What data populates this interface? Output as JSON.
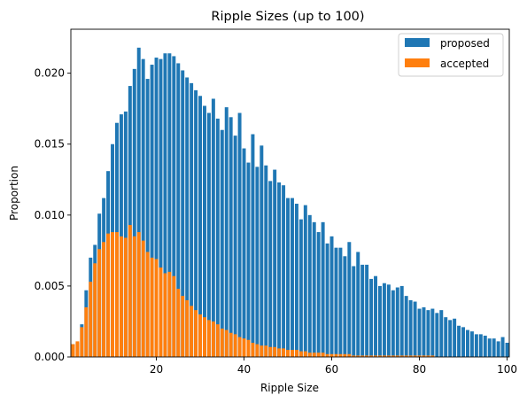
{
  "chart_data": {
    "type": "bar",
    "title": "Ripple Sizes (up to 100)",
    "xlabel": "Ripple Size",
    "ylabel": "Proportion",
    "xlim": [
      0.5,
      100.5
    ],
    "ylim": [
      0,
      0.0231
    ],
    "x_ticks": [
      20,
      40,
      60,
      80,
      100
    ],
    "y_ticks": [
      0.0,
      0.005,
      0.01,
      0.015,
      0.02
    ],
    "y_tick_labels": [
      "0.000",
      "0.005",
      "0.010",
      "0.015",
      "0.020"
    ],
    "grid": false,
    "legend_position": "top-right",
    "x": [
      1,
      2,
      3,
      4,
      5,
      6,
      7,
      8,
      9,
      10,
      11,
      12,
      13,
      14,
      15,
      16,
      17,
      18,
      19,
      20,
      21,
      22,
      23,
      24,
      25,
      26,
      27,
      28,
      29,
      30,
      31,
      32,
      33,
      34,
      35,
      36,
      37,
      38,
      39,
      40,
      41,
      42,
      43,
      44,
      45,
      46,
      47,
      48,
      49,
      50,
      51,
      52,
      53,
      54,
      55,
      56,
      57,
      58,
      59,
      60,
      61,
      62,
      63,
      64,
      65,
      66,
      67,
      68,
      69,
      70,
      71,
      72,
      73,
      74,
      75,
      76,
      77,
      78,
      79,
      80,
      81,
      82,
      83,
      84,
      85,
      86,
      87,
      88,
      89,
      90,
      91,
      92,
      93,
      94,
      95,
      96,
      97,
      98,
      99,
      100
    ],
    "series": [
      {
        "name": "proposed",
        "color": "#1f77b4",
        "values": [
          0.0009,
          0.001,
          0.0023,
          0.0047,
          0.007,
          0.0079,
          0.0101,
          0.0112,
          0.0131,
          0.015,
          0.0165,
          0.0171,
          0.0173,
          0.0191,
          0.0203,
          0.0218,
          0.021,
          0.0196,
          0.0206,
          0.0211,
          0.021,
          0.0214,
          0.0214,
          0.0212,
          0.0207,
          0.0202,
          0.0197,
          0.0193,
          0.0188,
          0.0184,
          0.0177,
          0.0172,
          0.0182,
          0.0168,
          0.016,
          0.0176,
          0.0169,
          0.0156,
          0.0172,
          0.0147,
          0.0137,
          0.0157,
          0.0134,
          0.0149,
          0.0135,
          0.0124,
          0.0132,
          0.0123,
          0.0121,
          0.0112,
          0.0112,
          0.0108,
          0.0097,
          0.0107,
          0.01,
          0.0095,
          0.0088,
          0.0095,
          0.008,
          0.0085,
          0.0077,
          0.0077,
          0.0071,
          0.0081,
          0.0064,
          0.0074,
          0.0065,
          0.0065,
          0.0055,
          0.0057,
          0.005,
          0.0052,
          0.0051,
          0.0047,
          0.0049,
          0.005,
          0.0043,
          0.004,
          0.0039,
          0.0034,
          0.0035,
          0.0033,
          0.0034,
          0.0031,
          0.0033,
          0.0028,
          0.0026,
          0.0027,
          0.0022,
          0.0021,
          0.0019,
          0.0018,
          0.0016,
          0.0016,
          0.0015,
          0.0013,
          0.0013,
          0.0011,
          0.0014,
          0.001
        ]
      },
      {
        "name": "accepted",
        "color": "#ff7f0e",
        "values": [
          0.0009,
          0.0011,
          0.0021,
          0.0035,
          0.0053,
          0.0066,
          0.0076,
          0.0081,
          0.0087,
          0.0088,
          0.0088,
          0.0085,
          0.0084,
          0.0093,
          0.0085,
          0.0088,
          0.0082,
          0.0074,
          0.007,
          0.0069,
          0.0063,
          0.0059,
          0.006,
          0.0057,
          0.0048,
          0.0043,
          0.004,
          0.0036,
          0.0033,
          0.003,
          0.0028,
          0.0026,
          0.0025,
          0.0023,
          0.002,
          0.0019,
          0.0017,
          0.0016,
          0.0014,
          0.0013,
          0.0012,
          0.001,
          0.0009,
          0.0008,
          0.0008,
          0.0007,
          0.0007,
          0.0006,
          0.0006,
          0.0005,
          0.0005,
          0.0005,
          0.0004,
          0.0004,
          0.0003,
          0.0003,
          0.0003,
          0.0003,
          0.0002,
          0.0002,
          0.0002,
          0.0002,
          0.0002,
          0.0002,
          0.0001,
          0.0001,
          0.0001,
          0.0001,
          0.0001,
          0.0001,
          0.0001,
          0.0001,
          0.0001,
          0.0001,
          0.0001,
          0.0001,
          0.0001,
          0.0001,
          0.0001,
          0.0001,
          0.0001,
          0.0001,
          0.0001,
          0.0,
          0.0,
          0.0,
          0.0,
          0.0,
          0.0,
          0.0,
          0.0,
          0.0,
          0.0,
          0.0,
          0.0,
          0.0,
          0.0,
          0.0,
          0.0,
          0.0
        ]
      }
    ]
  }
}
